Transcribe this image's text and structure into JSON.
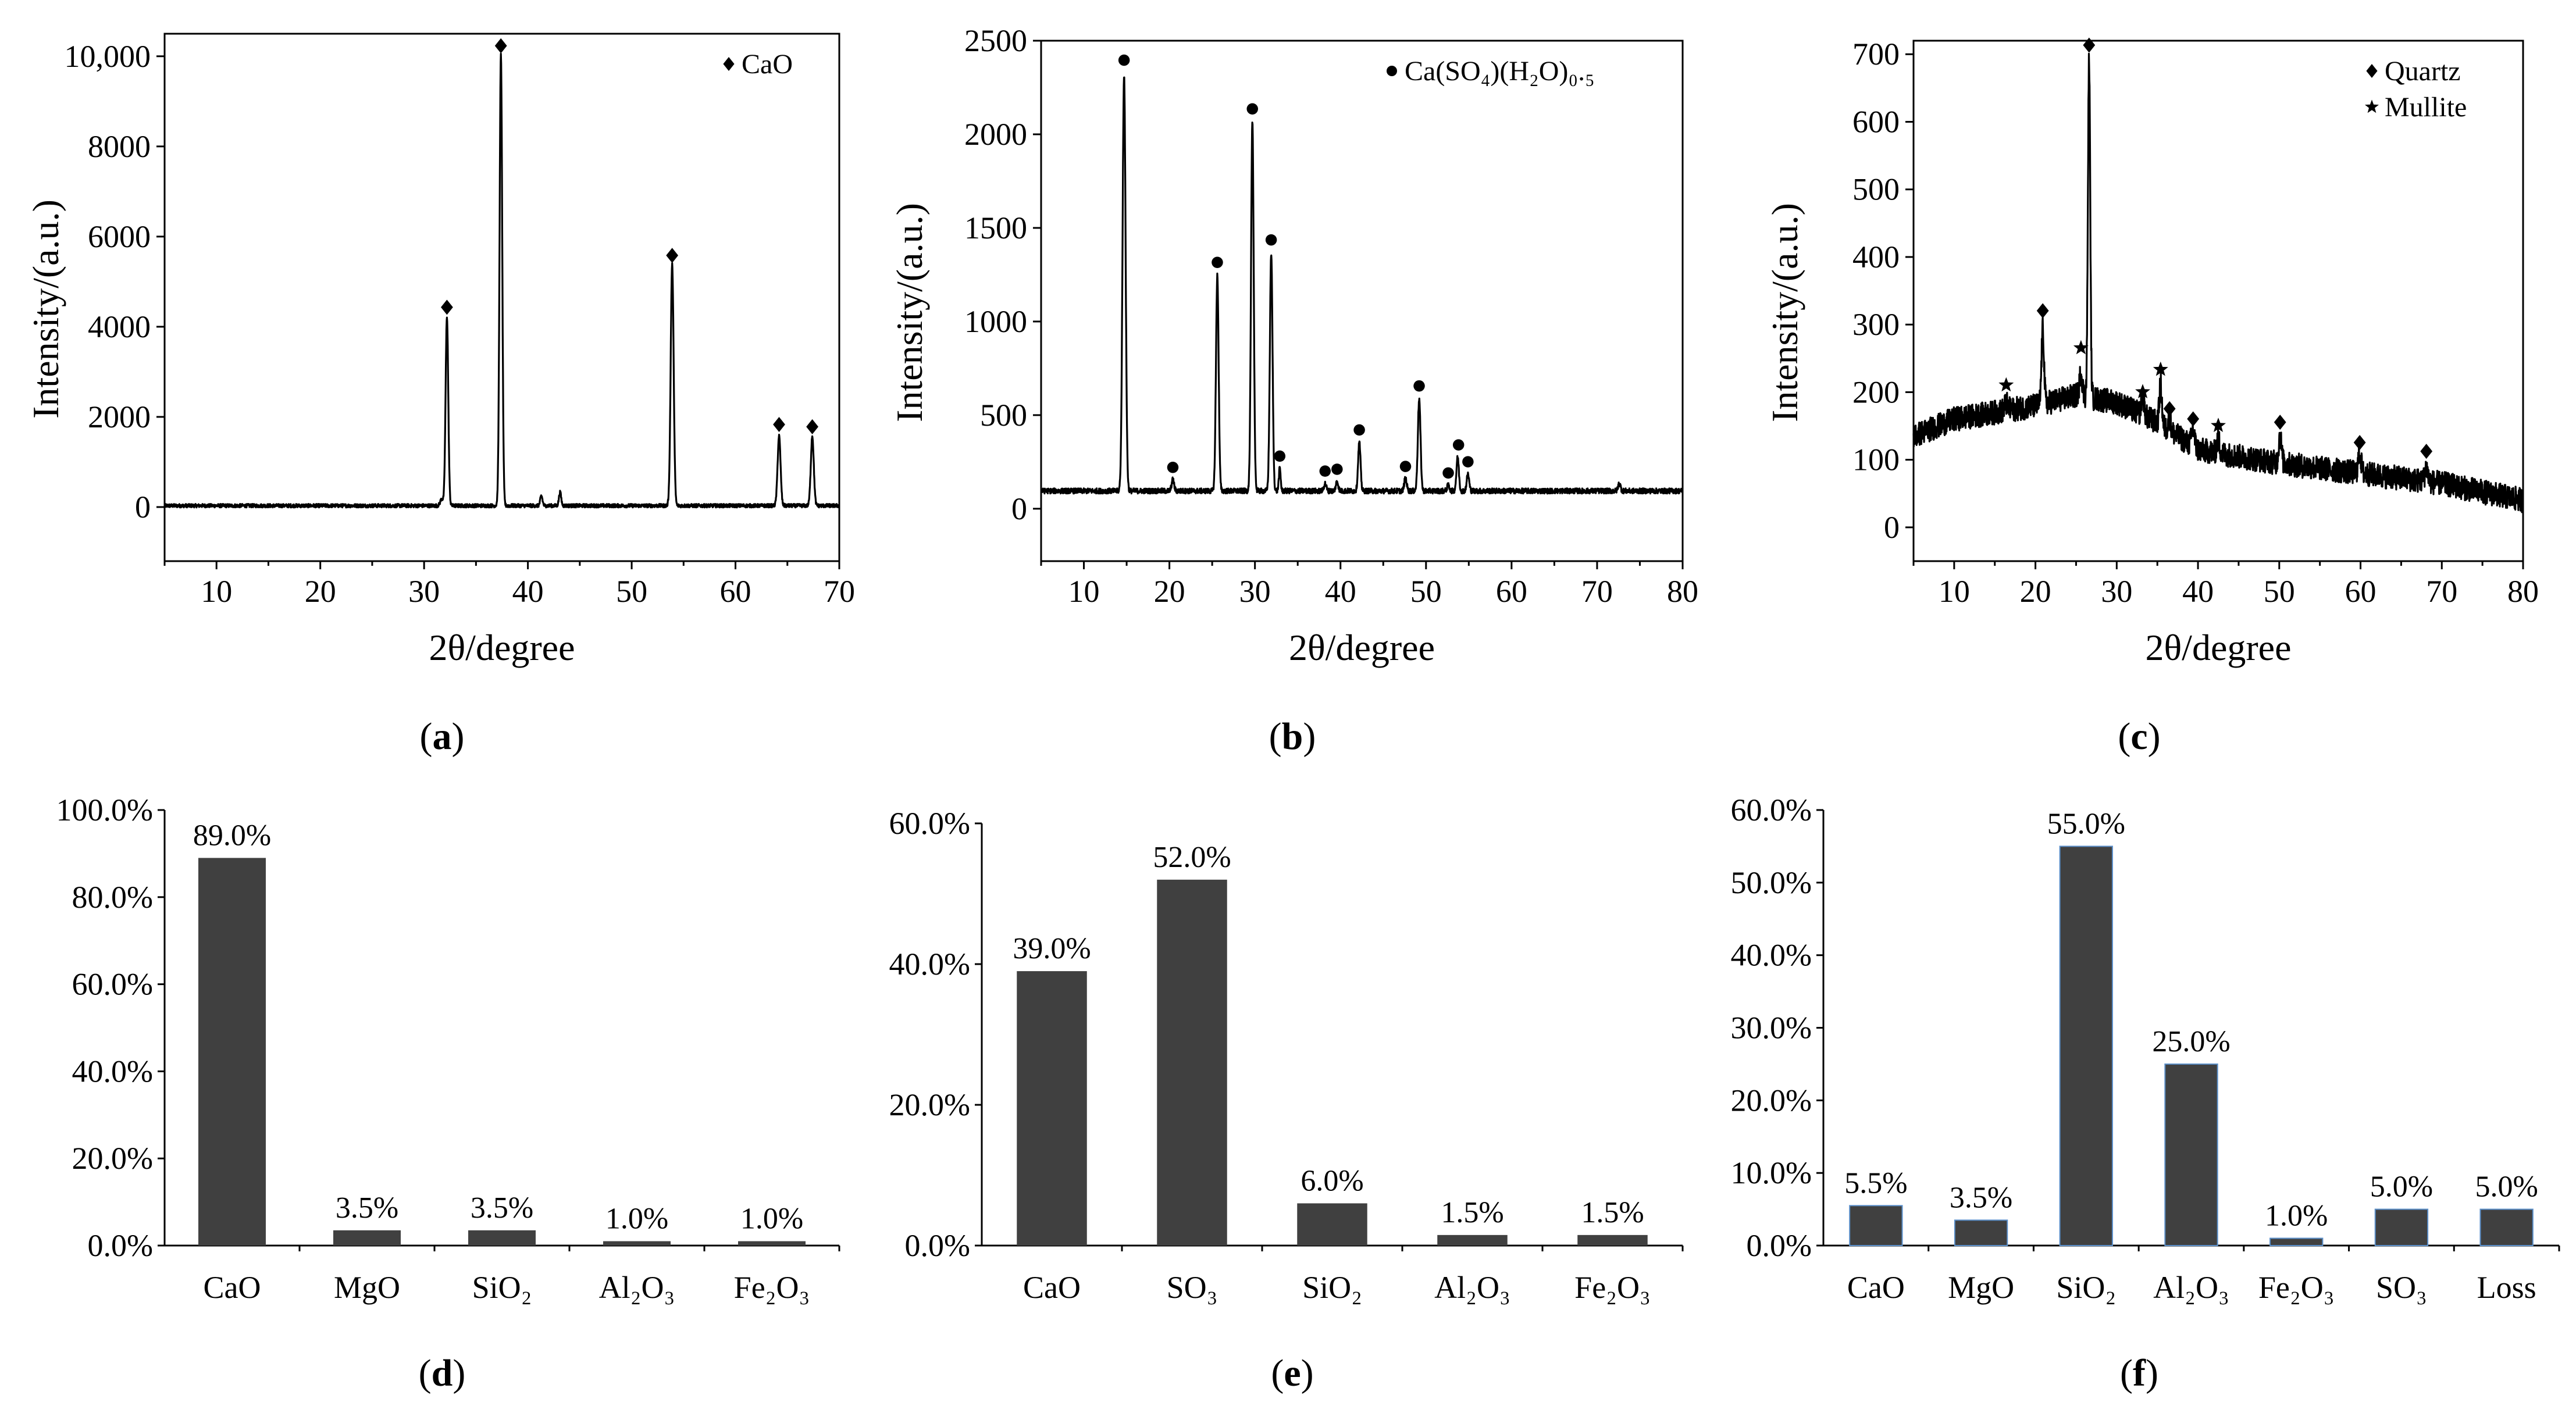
{
  "chart_data": [
    {
      "id": "a",
      "type": "line",
      "panel_label": "(a)",
      "xlabel": "2θ/degree",
      "ylabel": "Intensity/(a.u.)",
      "xlim": [
        5,
        70
      ],
      "ylim": [
        -1200,
        10500
      ],
      "xticks": [
        10,
        20,
        30,
        40,
        50,
        60,
        70
      ],
      "yticks": [
        {
          "v": 0,
          "label": "0"
        },
        {
          "v": 2000,
          "label": "2000"
        },
        {
          "v": 4000,
          "label": "4000"
        },
        {
          "v": 6000,
          "label": "6000"
        },
        {
          "v": 8000,
          "label": "8000"
        },
        {
          "v": 10000,
          "label": "10,000"
        }
      ],
      "legend": [
        {
          "marker": "diamond",
          "label": "CaO"
        }
      ],
      "baseline": 30,
      "noise": 40,
      "peaks": [
        [
          32.2,
          4200,
          0.18
        ],
        [
          37.4,
          10000,
          0.18
        ],
        [
          53.9,
          5350,
          0.2
        ],
        [
          64.2,
          1550,
          0.2
        ],
        [
          67.4,
          1550,
          0.2
        ],
        [
          41.3,
          220,
          0.15
        ],
        [
          43.1,
          300,
          0.15
        ],
        [
          31.7,
          150,
          0.2
        ]
      ],
      "markers": [
        {
          "x": 32.2,
          "y": 4200,
          "type": "diamond"
        },
        {
          "x": 37.4,
          "y": 10000,
          "type": "diamond"
        },
        {
          "x": 53.9,
          "y": 5350,
          "type": "diamond"
        },
        {
          "x": 64.2,
          "y": 1600,
          "type": "diamond"
        },
        {
          "x": 67.4,
          "y": 1550,
          "type": "diamond"
        }
      ]
    },
    {
      "id": "b",
      "type": "line",
      "panel_label": "(b)",
      "xlabel": "2θ/degree",
      "ylabel": "Intensity/(a.u.)",
      "xlim": [
        5,
        80
      ],
      "ylim": [
        -280,
        2500
      ],
      "xticks": [
        10,
        20,
        30,
        40,
        50,
        60,
        70,
        80
      ],
      "yticks": [
        {
          "v": 0,
          "label": "0"
        },
        {
          "v": 500,
          "label": "500"
        },
        {
          "v": 1000,
          "label": "1000"
        },
        {
          "v": 1500,
          "label": "1500"
        },
        {
          "v": 2000,
          "label": "2000"
        },
        {
          "v": 2500,
          "label": "2500"
        }
      ],
      "legend": [
        {
          "marker": "circle",
          "label": "Ca(SO₄)(H₂O)₀.₅"
        }
      ],
      "baseline": 95,
      "noise": 14,
      "peaks": [
        [
          14.7,
          2220,
          0.25
        ],
        [
          20.4,
          60,
          0.2
        ],
        [
          25.6,
          1150,
          0.22
        ],
        [
          29.7,
          1970,
          0.22
        ],
        [
          31.9,
          1270,
          0.22
        ],
        [
          32.9,
          120,
          0.15
        ],
        [
          38.2,
          40,
          0.2
        ],
        [
          39.6,
          50,
          0.2
        ],
        [
          42.2,
          260,
          0.2
        ],
        [
          47.6,
          70,
          0.2
        ],
        [
          49.2,
          490,
          0.22
        ],
        [
          52.6,
          30,
          0.2
        ],
        [
          53.7,
          180,
          0.2
        ],
        [
          54.9,
          90,
          0.2
        ],
        [
          72.6,
          40,
          0.2
        ]
      ],
      "markers": [
        {
          "x": 14.7,
          "y": 2340,
          "type": "circle"
        },
        {
          "x": 20.4,
          "y": 165,
          "type": "circle"
        },
        {
          "x": 25.6,
          "y": 1260,
          "type": "circle"
        },
        {
          "x": 29.7,
          "y": 2080,
          "type": "circle"
        },
        {
          "x": 31.9,
          "y": 1380,
          "type": "circle"
        },
        {
          "x": 32.9,
          "y": 225,
          "type": "circle"
        },
        {
          "x": 38.2,
          "y": 145,
          "type": "circle"
        },
        {
          "x": 39.6,
          "y": 155,
          "type": "circle"
        },
        {
          "x": 42.2,
          "y": 365,
          "type": "circle"
        },
        {
          "x": 47.6,
          "y": 170,
          "type": "circle"
        },
        {
          "x": 49.2,
          "y": 600,
          "type": "circle"
        },
        {
          "x": 52.6,
          "y": 135,
          "type": "circle"
        },
        {
          "x": 53.8,
          "y": 285,
          "type": "circle"
        },
        {
          "x": 54.9,
          "y": 195,
          "type": "circle"
        }
      ]
    },
    {
      "id": "c",
      "type": "line",
      "panel_label": "(c)",
      "xlabel": "2θ/degree",
      "ylabel": "Intensity/(a.u.)",
      "xlim": [
        5,
        80
      ],
      "ylim": [
        -50,
        720
      ],
      "xticks": [
        10,
        20,
        30,
        40,
        50,
        60,
        70,
        80
      ],
      "yticks": [
        {
          "v": 0,
          "label": "0"
        },
        {
          "v": 100,
          "label": "100"
        },
        {
          "v": 200,
          "label": "200"
        },
        {
          "v": 300,
          "label": "300"
        },
        {
          "v": 400,
          "label": "400"
        },
        {
          "v": 500,
          "label": "500"
        },
        {
          "v": 600,
          "label": "600"
        },
        {
          "v": 700,
          "label": "700"
        }
      ],
      "legend": [
        {
          "marker": "diamond",
          "label": "Quartz"
        },
        {
          "marker": "star",
          "label": "Mullite"
        }
      ],
      "background": [
        [
          5,
          135
        ],
        [
          10,
          160
        ],
        [
          15,
          170
        ],
        [
          20,
          180
        ],
        [
          25,
          195
        ],
        [
          30,
          185
        ],
        [
          35,
          155
        ],
        [
          40,
          115
        ],
        [
          50,
          95
        ],
        [
          60,
          80
        ],
        [
          70,
          65
        ],
        [
          80,
          40
        ]
      ],
      "noise": 18,
      "peaks": [
        [
          20.9,
          110,
          0.22
        ],
        [
          26.6,
          500,
          0.2
        ],
        [
          16.4,
          10,
          0.3
        ],
        [
          25.6,
          35,
          0.25
        ],
        [
          33.2,
          30,
          0.25
        ],
        [
          35.4,
          60,
          0.22
        ],
        [
          36.5,
          20,
          0.2
        ],
        [
          39.4,
          25,
          0.25
        ],
        [
          42.5,
          20,
          0.25
        ],
        [
          50.1,
          40,
          0.25
        ],
        [
          59.9,
          30,
          0.25
        ],
        [
          68.1,
          20,
          0.25
        ]
      ],
      "markers": [
        {
          "x": 20.9,
          "y": 305,
          "type": "diamond"
        },
        {
          "x": 26.6,
          "y": 698,
          "type": "diamond"
        },
        {
          "x": 36.5,
          "y": 160,
          "type": "diamond"
        },
        {
          "x": 39.4,
          "y": 145,
          "type": "diamond"
        },
        {
          "x": 50.1,
          "y": 140,
          "type": "diamond"
        },
        {
          "x": 59.9,
          "y": 110,
          "type": "diamond"
        },
        {
          "x": 68.1,
          "y": 97,
          "type": "diamond"
        },
        {
          "x": 16.4,
          "y": 195,
          "type": "star"
        },
        {
          "x": 25.6,
          "y": 250,
          "type": "star"
        },
        {
          "x": 33.2,
          "y": 185,
          "type": "star"
        },
        {
          "x": 35.4,
          "y": 218,
          "type": "star"
        },
        {
          "x": 42.5,
          "y": 135,
          "type": "star"
        }
      ]
    },
    {
      "id": "d",
      "type": "bar",
      "panel_label": "(d)",
      "categories": [
        "CaO",
        "MgO",
        "SiO₂",
        "Al₂O₃",
        "Fe₂O₃"
      ],
      "values": [
        89.0,
        3.5,
        3.5,
        1.0,
        1.0
      ],
      "value_labels": [
        "89.0%",
        "3.5%",
        "3.5%",
        "1.0%",
        "1.0%"
      ],
      "ylim": [
        0,
        100
      ],
      "yticks": [
        {
          "v": 0,
          "label": "0.0%"
        },
        {
          "v": 20,
          "label": "20.0%"
        },
        {
          "v": 40,
          "label": "40.0%"
        },
        {
          "v": 60,
          "label": "60.0%"
        },
        {
          "v": 80,
          "label": "80.0%"
        },
        {
          "v": 100,
          "label": "100.0%"
        }
      ]
    },
    {
      "id": "e",
      "type": "bar",
      "panel_label": "(e)",
      "categories": [
        "CaO",
        "SO₃",
        "SiO₂",
        "Al₂O₃",
        "Fe₂O₃"
      ],
      "values": [
        39.0,
        52.0,
        6.0,
        1.5,
        1.5
      ],
      "value_labels": [
        "39.0%",
        "52.0%",
        "6.0%",
        "1.5%",
        "1.5%"
      ],
      "ylim": [
        0,
        60
      ],
      "yticks": [
        {
          "v": 0,
          "label": "0.0%"
        },
        {
          "v": 20,
          "label": "20.0%"
        },
        {
          "v": 40,
          "label": "40.0%"
        },
        {
          "v": 60,
          "label": "60.0%"
        }
      ]
    },
    {
      "id": "f",
      "type": "bar",
      "panel_label": "(f)",
      "categories": [
        "CaO",
        "MgO",
        "SiO₂",
        "Al₂O₃",
        "Fe₂O₃",
        "SO₃",
        "Loss"
      ],
      "values": [
        5.5,
        3.5,
        55.0,
        25.0,
        1.0,
        5.0,
        5.0
      ],
      "value_labels": [
        "5.5%",
        "3.5%",
        "55.0%",
        "25.0%",
        "1.0%",
        "5.0%",
        "5.0%"
      ],
      "ylim": [
        0,
        60
      ],
      "yticks": [
        {
          "v": 0,
          "label": "0.0%"
        },
        {
          "v": 10,
          "label": "10.0%"
        },
        {
          "v": 20,
          "label": "20.0%"
        },
        {
          "v": 30,
          "label": "30.0%"
        },
        {
          "v": 40,
          "label": "40.0%"
        },
        {
          "v": 50,
          "label": "50.0%"
        },
        {
          "v": 60,
          "label": "60.0%"
        }
      ]
    }
  ]
}
